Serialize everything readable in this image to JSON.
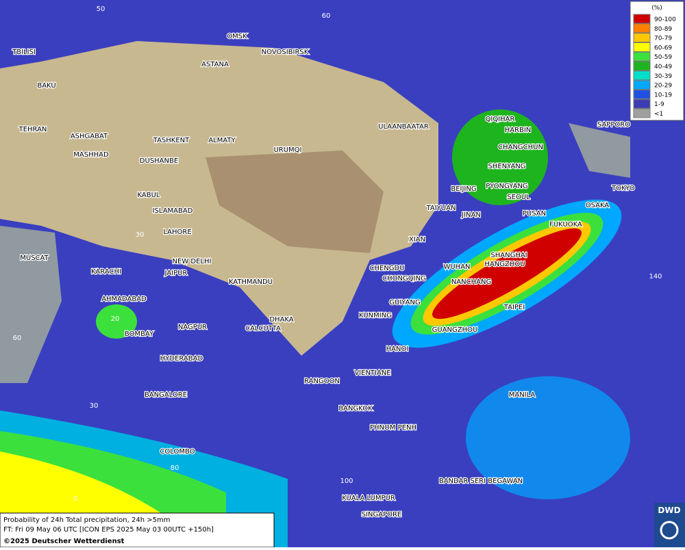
{
  "map": {
    "cities": [
      "OMSK",
      "NOVOSIBIRSK",
      "ASTANA",
      "TBILISI",
      "BAKU",
      "TEHRAN",
      "ASHGABAT",
      "MASHHAD",
      "TASHKENT",
      "ALMATY",
      "DUSHANBE",
      "URUMQI",
      "ULAANBAATAR",
      "QIQIHAR",
      "HARBIN",
      "CHANGCHUN",
      "SHENYANG",
      "BEIJING",
      "PYONGYANG",
      "SEOUL",
      "SAPPORO",
      "TOKYO",
      "OSAKA",
      "PUSAN",
      "FUKUOKA",
      "TAIYUAN",
      "JINAN",
      "XIAN",
      "KABUL",
      "ISLAMABAD",
      "LAHORE",
      "MUSCAT",
      "KARACHI",
      "NEW DELHI",
      "JAIPUR",
      "CHENGDU",
      "CHONGQING",
      "WUHAN",
      "SHANGHAI",
      "HANGZHOU",
      "NANCHANG",
      "KATHMANDU",
      "AHMADABAD",
      "GUIYANG",
      "TAIPEI",
      "DHAKA",
      "KUNMING",
      "CALCUTTA",
      "BOMBAY",
      "NAGPUR",
      "GUANGZHOU",
      "HANOI",
      "HYDERABAD",
      "RANGOON",
      "VIENTIANE",
      "MANILA",
      "BANGALORE",
      "BANGKOK",
      "PHNOM PENH",
      "COLOMBO",
      "BANDAR SERI BEGAWAN",
      "KUALA LUMPUR",
      "SINGAPORE"
    ],
    "grid_labels": [
      50,
      60,
      140,
      20,
      60,
      30,
      30,
      80,
      0,
      100
    ]
  },
  "legend": {
    "title": "(%)",
    "items": [
      {
        "label": "90-100",
        "color": "#d00000"
      },
      {
        "label": "80-89",
        "color": "#ff8000"
      },
      {
        "label": "70-79",
        "color": "#ffc800"
      },
      {
        "label": "60-69",
        "color": "#ffff00"
      },
      {
        "label": "50-59",
        "color": "#3ce03c"
      },
      {
        "label": "40-49",
        "color": "#1eb41e"
      },
      {
        "label": "30-39",
        "color": "#00e0c8"
      },
      {
        "label": "20-29",
        "color": "#00a8ff"
      },
      {
        "label": "10-19",
        "color": "#2050e0"
      },
      {
        "label": "1-9",
        "color": "#3c3cb4"
      },
      {
        "label": "<1",
        "color": "#a0a0a0"
      }
    ]
  },
  "footer": {
    "line1": "Probability of 24h Total precipitation, 24h >5mm",
    "line2": "FT: Fri 09 May 06 UTC [ICON EPS 2025 May 03 00UTC +150h]",
    "line3": "©2025 Deutscher Wetterdienst"
  },
  "logo": "DWD"
}
